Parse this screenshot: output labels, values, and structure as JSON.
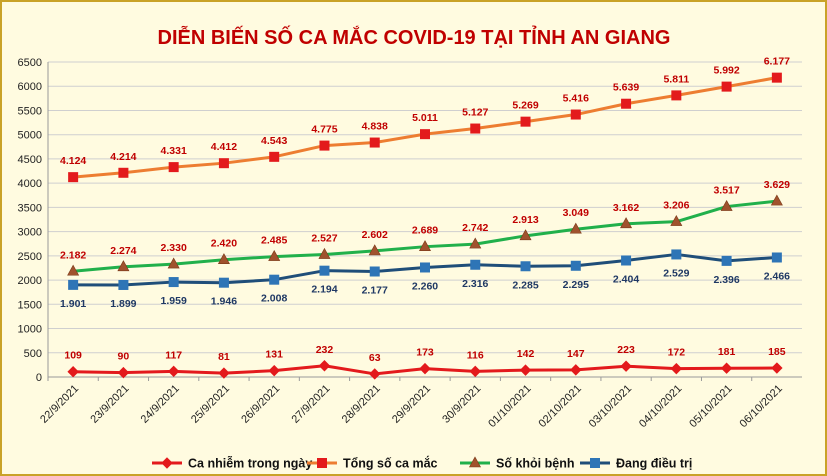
{
  "chart_data": {
    "type": "line",
    "title": "DIỄN BIẾN SỐ CA MẮC COVID-19 TẠI TỈNH AN GIANG",
    "categories": [
      "22/9/2021",
      "23/9/2021",
      "24/9/2021",
      "25/9/2021",
      "26/9/2021",
      "27/9/2021",
      "28/9/2021",
      "29/9/2021",
      "30/9/2021",
      "01/10/2021",
      "02/10/2021",
      "03/10/2021",
      "04/10/2021",
      "05/10/2021",
      "06/10/2021"
    ],
    "ylim": [
      0,
      6500
    ],
    "ytick_step": 500,
    "yticks": [
      "0",
      "500",
      "1000",
      "1500",
      "2000",
      "2500",
      "3000",
      "3500",
      "4000",
      "4500",
      "5000",
      "5500",
      "6000",
      "6500"
    ],
    "grid": true,
    "legend_position": "bottom",
    "series": [
      {
        "name": "Ca nhiễm trong ngày",
        "color": "#e31a1c",
        "line_color": "#e31a1c",
        "marker": "diamond",
        "label_color": "#c00000",
        "label_position": "above",
        "values": [
          109,
          90,
          117,
          81,
          131,
          232,
          63,
          173,
          116,
          142,
          147,
          223,
          172,
          181,
          185
        ],
        "labels": [
          "109",
          "90",
          "117",
          "81",
          "131",
          "232",
          "63",
          "173",
          "116",
          "142",
          "147",
          "223",
          "172",
          "181",
          "185"
        ]
      },
      {
        "name": "Tổng số ca mắc",
        "color": "#e31a1c",
        "line_color": "#ed7d31",
        "marker": "square",
        "label_color": "#c00000",
        "label_position": "above",
        "values": [
          4124,
          4214,
          4331,
          4412,
          4543,
          4775,
          4838,
          5011,
          5127,
          5269,
          5416,
          5639,
          5811,
          5992,
          6177
        ],
        "labels": [
          "4.124",
          "4.214",
          "4.331",
          "4.412",
          "4.543",
          "4.775",
          "4.838",
          "5.011",
          "5.127",
          "5.269",
          "5.416",
          "5.639",
          "5.811",
          "5.992",
          "6.177"
        ]
      },
      {
        "name": "Số khỏi bệnh",
        "color": "#a0522d",
        "line_color": "#21b04b",
        "marker": "triangle",
        "label_color": "#c00000",
        "label_position": "above",
        "values": [
          2182,
          2274,
          2330,
          2420,
          2485,
          2527,
          2602,
          2689,
          2742,
          2913,
          3049,
          3162,
          3206,
          3517,
          3629
        ],
        "labels": [
          "2.182",
          "2.274",
          "2.330",
          "2.420",
          "2.485",
          "2.527",
          "2.602",
          "2.689",
          "2.742",
          "2.913",
          "3.049",
          "3.162",
          "3.206",
          "3.517",
          "3.629"
        ]
      },
      {
        "name": "Đang điều trị",
        "color": "#2e75b6",
        "line_color": "#1f4e79",
        "marker": "square",
        "label_color": "#1f3864",
        "label_position": "below",
        "values": [
          1901,
          1899,
          1959,
          1946,
          2008,
          2194,
          2177,
          2260,
          2316,
          2285,
          2295,
          2404,
          2529,
          2396,
          2466
        ],
        "labels": [
          "1.901",
          "1.899",
          "1.959",
          "1.946",
          "2.008",
          "2.194",
          "2.177",
          "2.260",
          "2.316",
          "2.285",
          "2.295",
          "2.404",
          "2.529",
          "2.396",
          "2.466"
        ]
      }
    ]
  }
}
